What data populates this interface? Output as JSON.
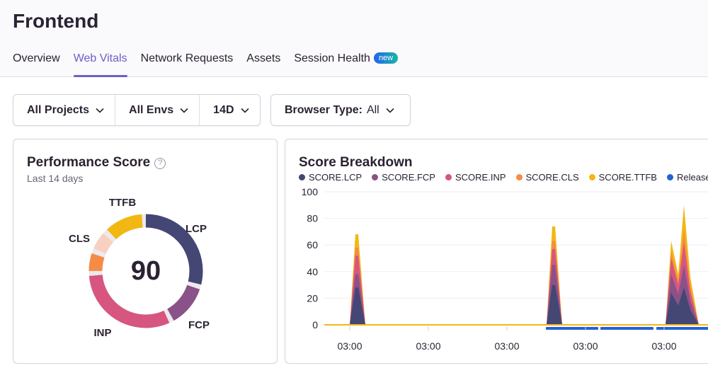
{
  "header": {
    "title": "Frontend",
    "tabs": [
      {
        "label": "Overview",
        "active": false
      },
      {
        "label": "Web Vitals",
        "active": true
      },
      {
        "label": "Network Requests",
        "active": false
      },
      {
        "label": "Assets",
        "active": false
      },
      {
        "label": "Session Health",
        "active": false,
        "badge": "new"
      }
    ]
  },
  "filters": {
    "projects": "All Projects",
    "envs": "All Envs",
    "period": "14D",
    "browser_label": "Browser Type:",
    "browser_value": "All"
  },
  "performance": {
    "title": "Performance Score",
    "subtitle": "Last 14 days",
    "score": "90",
    "segments": [
      {
        "label": "LCP",
        "color": "#444674",
        "start": 0,
        "end": 0.288
      },
      {
        "label": "FCP",
        "color": "#895289",
        "start": 0.302,
        "end": 0.418
      },
      {
        "label": "INP",
        "color": "#d6567f",
        "start": 0.432,
        "end": 0.736
      },
      {
        "label": "CLS",
        "color": "#f58c46",
        "start": 0.75,
        "end": 0.8
      },
      {
        "label": "CLS-light",
        "color": "#f9d0c0",
        "start": 0.815,
        "end": 0.865
      },
      {
        "label": "TTFB",
        "color": "#f2b712",
        "start": 0.88,
        "end": 0.988
      }
    ]
  },
  "breakdown": {
    "title": "Score Breakdown"
  },
  "chart_data": {
    "type": "area",
    "title": "Score Breakdown",
    "ylim": [
      0,
      100
    ],
    "yticks": [
      0,
      20,
      40,
      60,
      80,
      100
    ],
    "xticks": [
      "03:00",
      "03:00",
      "03:00",
      "03:00",
      "03:00"
    ],
    "legend": [
      "SCORE.LCP",
      "SCORE.FCP",
      "SCORE.INP",
      "SCORE.CLS",
      "SCORE.TTFB",
      "Releases"
    ],
    "colors": {
      "SCORE.LCP": "#444674",
      "SCORE.FCP": "#895289",
      "SCORE.INP": "#d6567f",
      "SCORE.CLS": "#f58c46",
      "SCORE.TTFB": "#f2b712",
      "Releases": "#2562d4"
    },
    "spikes": [
      {
        "lcp": 28,
        "fcp": 38,
        "inp": 52,
        "cls": 58,
        "ttfb": 68
      },
      {
        "lcp": 30,
        "fcp": 45,
        "inp": 57,
        "cls": 63,
        "ttfb": 74
      },
      {
        "lcp": 24,
        "fcp": 38,
        "inp": 50,
        "cls": 55,
        "ttfb": 63
      },
      {
        "lcp": 28,
        "fcp": 45,
        "inp": 62,
        "cls": 72,
        "ttfb": 90
      }
    ]
  }
}
